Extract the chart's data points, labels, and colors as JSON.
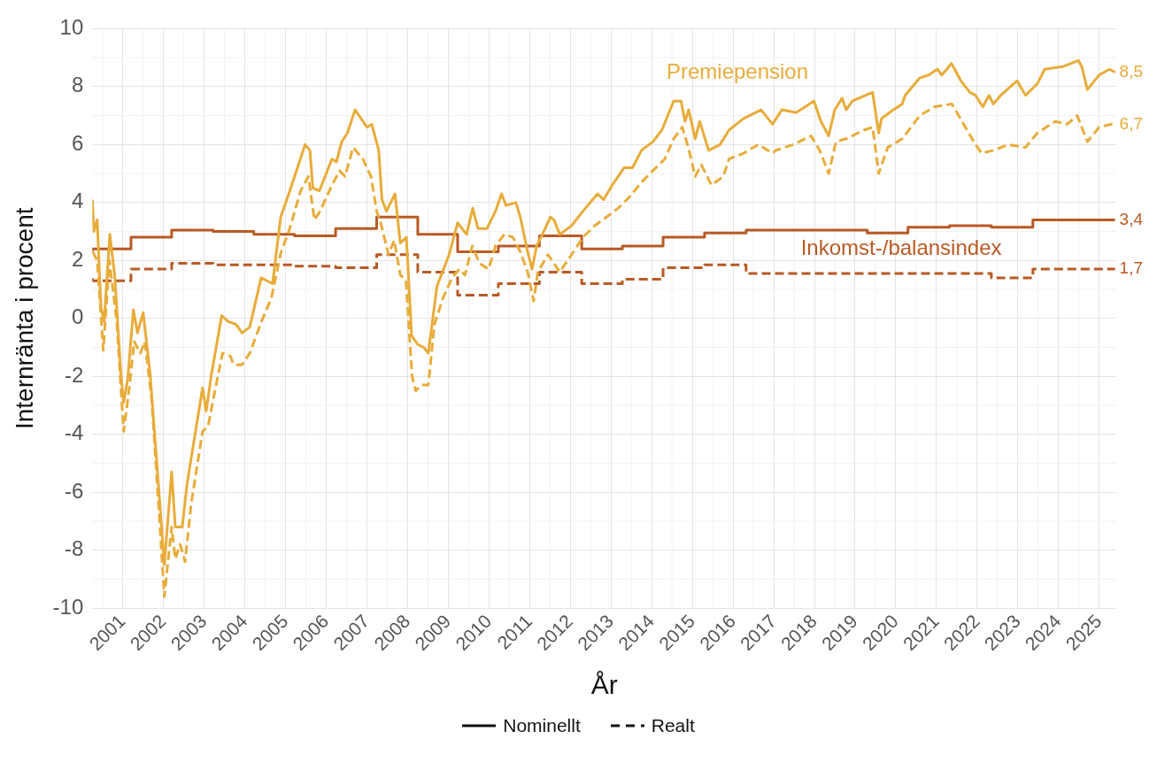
{
  "chart_data": {
    "type": "line",
    "xlabel": "År",
    "ylabel": "Internränta i procent",
    "xlim": [
      2000.25,
      2025.42
    ],
    "xticks": [
      2001,
      2002,
      2003,
      2004,
      2005,
      2006,
      2007,
      2008,
      2009,
      2010,
      2011,
      2012,
      2013,
      2014,
      2015,
      2016,
      2017,
      2018,
      2019,
      2020,
      2021,
      2022,
      2023,
      2024,
      2025
    ],
    "ylim": [
      -10,
      10
    ],
    "yticks": [
      -10,
      -8,
      -6,
      -4,
      -2,
      0,
      2,
      4,
      6,
      8,
      10
    ],
    "grid": true,
    "legend": false,
    "annotations": [
      "Nominellt",
      "Realt"
    ],
    "series": [
      {
        "name": "Premiepension",
        "line_style": "solid",
        "color": "#e8ac3a",
        "x": [
          2000.25,
          2000.29,
          2000.37,
          2000.46,
          2000.54,
          2000.68,
          2000.8,
          2000.95,
          2001.02,
          2001.12,
          2001.26,
          2001.36,
          2001.5,
          2001.67,
          2001.9,
          2002.02,
          2002.2,
          2002.29,
          2002.46,
          2002.58,
          2002.96,
          2003.05,
          2003.17,
          2003.43,
          2003.58,
          2003.78,
          2003.93,
          2004.12,
          2004.4,
          2004.68,
          2004.88,
          2005.08,
          2005.27,
          2005.48,
          2005.6,
          2005.67,
          2005.83,
          2006.14,
          2006.25,
          2006.38,
          2006.52,
          2006.71,
          2007.0,
          2007.12,
          2007.29,
          2007.37,
          2007.48,
          2007.69,
          2007.82,
          2007.97,
          2008.1,
          2008.25,
          2008.4,
          2008.51,
          2008.62,
          2008.72,
          2009.02,
          2009.23,
          2009.45,
          2009.6,
          2009.73,
          2009.95,
          2010.16,
          2010.31,
          2010.42,
          2010.66,
          2010.77,
          2010.95,
          2011.06,
          2011.17,
          2011.38,
          2011.51,
          2011.6,
          2011.74,
          2012.03,
          2012.31,
          2012.67,
          2012.82,
          2013.03,
          2013.32,
          2013.53,
          2013.75,
          2014.03,
          2014.25,
          2014.54,
          2014.72,
          2014.82,
          2014.91,
          2015.07,
          2015.18,
          2015.4,
          2015.68,
          2015.9,
          2016.26,
          2016.69,
          2016.97,
          2017.2,
          2017.55,
          2017.99,
          2018.16,
          2018.35,
          2018.5,
          2018.68,
          2018.78,
          2018.93,
          2019.43,
          2019.58,
          2019.65,
          2019.94,
          2020.16,
          2020.23,
          2020.59,
          2020.81,
          2021.02,
          2021.13,
          2021.37,
          2021.6,
          2021.82,
          2021.96,
          2022.14,
          2022.29,
          2022.4,
          2022.58,
          2022.98,
          2023.19,
          2023.48,
          2023.66,
          2024.13,
          2024.49,
          2024.57,
          2024.71,
          2025.0,
          2025.25,
          2025.39
        ],
        "values": [
          4.1,
          3.0,
          3.4,
          0.4,
          -0.1,
          2.9,
          1.5,
          -1.9,
          -2.9,
          -2.1,
          0.3,
          -0.5,
          0.2,
          -1.9,
          -6.2,
          -8.5,
          -5.3,
          -7.2,
          -7.2,
          -5.7,
          -2.4,
          -3.2,
          -2.0,
          0.1,
          -0.1,
          -0.2,
          -0.5,
          -0.3,
          1.4,
          1.2,
          3.5,
          4.3,
          5.1,
          6.0,
          5.8,
          4.5,
          4.4,
          5.5,
          5.4,
          6.1,
          6.4,
          7.2,
          6.6,
          6.7,
          5.8,
          4.1,
          3.7,
          4.3,
          2.6,
          2.8,
          -0.6,
          -0.9,
          -1.0,
          -1.2,
          0.0,
          1.1,
          2.2,
          3.3,
          2.9,
          3.8,
          3.1,
          3.1,
          3.7,
          4.3,
          3.9,
          4.0,
          3.5,
          2.3,
          1.7,
          2.5,
          3.1,
          3.5,
          3.4,
          2.9,
          3.2,
          3.7,
          4.3,
          4.1,
          4.6,
          5.2,
          5.2,
          5.8,
          6.1,
          6.5,
          7.5,
          7.5,
          6.8,
          7.2,
          6.2,
          6.8,
          5.8,
          6.0,
          6.5,
          6.9,
          7.2,
          6.7,
          7.2,
          7.1,
          7.5,
          6.8,
          6.3,
          7.2,
          7.6,
          7.2,
          7.5,
          7.8,
          6.4,
          6.9,
          7.2,
          7.4,
          7.7,
          8.3,
          8.4,
          8.6,
          8.4,
          8.8,
          8.2,
          7.8,
          7.7,
          7.3,
          7.7,
          7.4,
          7.7,
          8.2,
          7.7,
          8.1,
          8.6,
          8.7,
          8.9,
          8.7,
          7.9,
          8.4,
          8.6,
          8.5
        ],
        "value_labels": [
          null,
          null,
          null,
          null,
          null,
          null,
          null,
          null,
          null,
          null,
          null,
          null,
          null,
          null,
          null,
          null,
          null,
          null,
          null,
          null,
          null,
          null,
          null,
          null,
          null,
          null,
          null,
          null,
          null,
          null,
          null,
          null,
          null,
          null,
          null,
          null,
          null,
          null,
          null,
          null,
          null,
          null,
          null,
          null,
          null,
          null,
          null,
          null,
          null,
          null,
          null,
          null,
          null,
          null,
          null,
          null,
          null,
          null,
          null,
          null,
          null,
          null,
          null,
          null,
          null,
          null,
          null,
          null,
          null,
          null,
          null,
          null,
          null,
          null,
          null,
          null,
          null,
          null,
          null,
          null,
          null,
          null,
          null,
          null,
          null,
          null,
          null,
          null,
          null,
          null,
          null,
          null,
          null,
          null,
          null,
          null,
          null,
          null,
          null,
          null,
          null,
          null,
          null,
          null,
          null,
          null,
          null,
          null,
          null,
          null,
          null,
          null,
          null,
          null,
          null,
          null,
          null,
          null,
          null,
          null,
          null,
          null,
          null,
          null,
          null,
          null,
          null,
          null,
          null,
          null,
          null,
          null,
          null,
          "8,5"
        ]
      },
      {
        "line_style": "dashed",
        "color": "#e8ac3a",
        "x": [
          2000.26,
          2000.37,
          2000.52,
          2000.67,
          2000.85,
          2001.02,
          2001.15,
          2001.28,
          2001.43,
          2001.54,
          2001.71,
          2001.9,
          2002.02,
          2002.2,
          2002.29,
          2002.41,
          2002.53,
          2002.68,
          2002.96,
          2003.1,
          2003.25,
          2003.45,
          2003.64,
          2003.73,
          2003.93,
          2004.12,
          2004.41,
          2004.65,
          2004.89,
          2005.08,
          2005.37,
          2005.56,
          2005.71,
          2005.85,
          2006.14,
          2006.33,
          2006.46,
          2006.66,
          2006.9,
          2007.1,
          2007.24,
          2007.34,
          2007.53,
          2007.67,
          2007.82,
          2007.96,
          2008.11,
          2008.2,
          2008.34,
          2008.51,
          2008.66,
          2008.87,
          2009.09,
          2009.27,
          2009.41,
          2009.59,
          2009.77,
          2009.99,
          2010.16,
          2010.38,
          2010.59,
          2010.77,
          2010.95,
          2011.1,
          2011.2,
          2011.45,
          2011.6,
          2011.74,
          2012.03,
          2012.31,
          2012.6,
          2012.89,
          2013.17,
          2013.46,
          2013.75,
          2014.03,
          2014.32,
          2014.54,
          2014.75,
          2014.9,
          2015.07,
          2015.22,
          2015.47,
          2015.76,
          2015.9,
          2016.26,
          2016.62,
          2016.97,
          2017.05,
          2017.48,
          2017.92,
          2018.13,
          2018.35,
          2018.53,
          2018.78,
          2019.22,
          2019.43,
          2019.58,
          2019.8,
          2020.16,
          2020.59,
          2020.95,
          2021.38,
          2021.67,
          2021.96,
          2022.11,
          2022.4,
          2022.76,
          2023.19,
          2023.48,
          2023.92,
          2024.21,
          2024.46,
          2024.71,
          2025.0,
          2025.29,
          2025.39
        ],
        "values": [
          2.3,
          2.0,
          -1.1,
          2.0,
          -0.1,
          -3.9,
          -2.5,
          -0.8,
          -1.2,
          -0.8,
          -2.8,
          -6.9,
          -9.6,
          -7.2,
          -8.3,
          -7.8,
          -8.4,
          -6.4,
          -3.9,
          -3.7,
          -2.6,
          -1.2,
          -1.3,
          -1.6,
          -1.6,
          -1.2,
          -0.1,
          0.7,
          2.3,
          3.0,
          4.4,
          4.9,
          3.4,
          3.7,
          4.6,
          5.1,
          4.9,
          5.9,
          5.5,
          4.9,
          3.7,
          3.3,
          2.2,
          2.7,
          1.5,
          1.3,
          -2.0,
          -2.5,
          -2.3,
          -2.3,
          -0.2,
          0.7,
          1.4,
          1.7,
          1.5,
          2.5,
          1.9,
          1.7,
          2.5,
          2.9,
          2.8,
          2.3,
          1.6,
          0.6,
          1.6,
          2.2,
          1.9,
          1.6,
          2.2,
          2.8,
          3.2,
          3.5,
          3.8,
          4.2,
          4.7,
          5.1,
          5.5,
          6.2,
          6.6,
          5.9,
          4.9,
          5.3,
          4.6,
          4.9,
          5.5,
          5.7,
          6.0,
          5.7,
          5.8,
          6.0,
          6.3,
          5.8,
          5.0,
          6.1,
          6.2,
          6.5,
          6.6,
          5.0,
          5.9,
          6.2,
          7.0,
          7.3,
          7.4,
          6.7,
          6.0,
          5.7,
          5.8,
          6.0,
          5.9,
          6.4,
          6.8,
          6.7,
          7.0,
          6.1,
          6.6,
          6.7,
          6.7
        ],
        "value_labels": [
          null,
          null,
          null,
          null,
          null,
          null,
          null,
          null,
          null,
          null,
          null,
          null,
          null,
          null,
          null,
          null,
          null,
          null,
          null,
          null,
          null,
          null,
          null,
          null,
          null,
          null,
          null,
          null,
          null,
          null,
          null,
          null,
          null,
          null,
          null,
          null,
          null,
          null,
          null,
          null,
          null,
          null,
          null,
          null,
          null,
          null,
          null,
          null,
          null,
          null,
          null,
          null,
          null,
          null,
          null,
          null,
          null,
          null,
          null,
          null,
          null,
          null,
          null,
          null,
          null,
          null,
          null,
          null,
          null,
          null,
          null,
          null,
          null,
          null,
          null,
          null,
          null,
          null,
          null,
          null,
          null,
          null,
          null,
          null,
          null,
          null,
          null,
          null,
          null,
          null,
          null,
          null,
          null,
          null,
          null,
          null,
          null,
          null,
          null,
          null,
          null,
          null,
          null,
          null,
          null,
          null,
          null,
          null,
          null,
          null,
          null,
          null,
          null,
          null,
          null,
          null,
          "6,7"
        ]
      },
      {
        "name": "Inkomst-/balansindex",
        "type": "step",
        "line_style": "solid",
        "color": "#b85a24",
        "x": [
          2000.25,
          2001.2,
          2002.2,
          2003.22,
          2004.22,
          2005.22,
          2006.23,
          2007.24,
          2008.25,
          2009.23,
          2010.23,
          2011.24,
          2012.28,
          2013.28,
          2014.28,
          2015.3,
          2016.32,
          2019.3,
          2020.3,
          2021.32,
          2022.35,
          2023.37,
          2024.36,
          2025.39
        ],
        "values": [
          2.3,
          2.4,
          2.8,
          3.05,
          3.0,
          2.9,
          2.85,
          3.1,
          3.5,
          2.9,
          2.3,
          2.5,
          2.85,
          2.4,
          2.5,
          2.8,
          2.95,
          3.05,
          2.95,
          3.15,
          3.2,
          3.15,
          3.4,
          3.4
        ],
        "value_labels": [
          null,
          null,
          null,
          null,
          null,
          null,
          null,
          null,
          null,
          null,
          null,
          null,
          null,
          null,
          null,
          null,
          null,
          null,
          null,
          null,
          null,
          null,
          null,
          "3,4"
        ]
      },
      {
        "type": "step",
        "line_style": "dashed",
        "color": "#b85a24",
        "x": [
          2000.25,
          2001.2,
          2002.2,
          2003.22,
          2005.22,
          2006.23,
          2007.24,
          2008.25,
          2009.23,
          2010.23,
          2011.24,
          2012.28,
          2013.28,
          2014.28,
          2015.3,
          2016.32,
          2022.35,
          2023.37,
          2024.36,
          2025.39
        ],
        "values": [
          1.4,
          1.3,
          1.7,
          1.9,
          1.85,
          1.8,
          1.75,
          2.2,
          1.6,
          0.8,
          1.2,
          1.6,
          1.2,
          1.35,
          1.75,
          1.85,
          1.55,
          1.4,
          1.7,
          1.7
        ],
        "value_labels": [
          null,
          null,
          null,
          null,
          null,
          null,
          null,
          null,
          null,
          null,
          null,
          null,
          null,
          null,
          null,
          null,
          null,
          null,
          null,
          "1,7"
        ]
      }
    ]
  }
}
